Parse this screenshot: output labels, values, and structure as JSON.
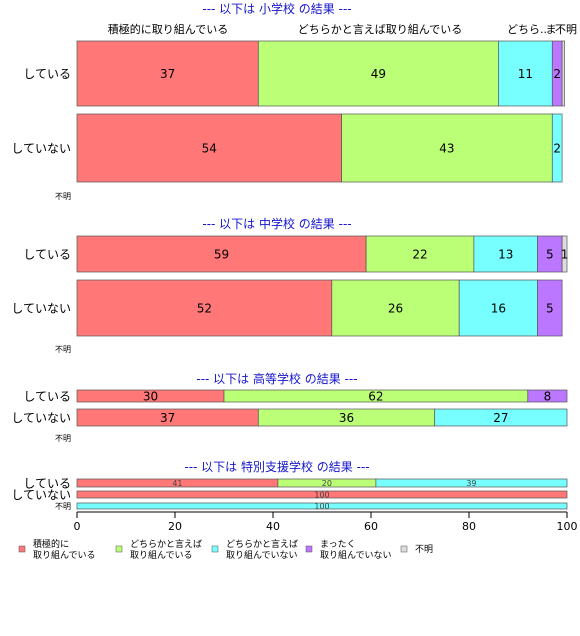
{
  "chart_data": {
    "type": "bar",
    "orientation": "horizontal",
    "stacked": true,
    "xlim": [
      0,
      100
    ],
    "x_ticks": [
      0,
      20,
      40,
      60,
      80,
      100
    ],
    "grid": false,
    "legend_position": "bottom",
    "categories_legend": [
      {
        "label_lines": [
          "積極的に",
          "取り組んでいる"
        ],
        "color": "#FF7777"
      },
      {
        "label_lines": [
          "どちらかと言えば",
          "取り組んでいる"
        ],
        "color": "#BBFF77"
      },
      {
        "label_lines": [
          "どちらかと言えば",
          "取り組んでいない"
        ],
        "color": "#77FFFF"
      },
      {
        "label_lines": [
          "まったく",
          "取り組んでいない"
        ],
        "color": "#BB77FF"
      },
      {
        "label_lines": [
          "不明"
        ],
        "color": "#DDDDDD"
      }
    ],
    "panels": [
      {
        "title": "--- 以下は 小学校 の結果 ---",
        "header_labels": [
          "積極的に取り組んでいる",
          "どちらかと言えば取り組んでいる",
          "どちら..",
          "ま",
          "不明"
        ],
        "rows": [
          {
            "label": "している",
            "values": [
              37,
              49,
              11,
              2,
              0.5
            ],
            "value_labels": [
              "37",
              "49",
              "11",
              "2",
              ""
            ]
          },
          {
            "label": "していない",
            "values": [
              54,
              43,
              2,
              0,
              0
            ],
            "value_labels": [
              "54",
              "43",
              "2",
              "",
              ""
            ]
          },
          {
            "label": "不明",
            "values": [],
            "value_labels": []
          }
        ]
      },
      {
        "title": "--- 以下は 中学校 の結果 ---",
        "header_labels": [],
        "rows": [
          {
            "label": "している",
            "values": [
              59,
              22,
              13,
              5,
              1
            ],
            "value_labels": [
              "59",
              "22",
              "13",
              "5",
              "1"
            ]
          },
          {
            "label": "していない",
            "values": [
              52,
              26,
              16,
              5,
              0
            ],
            "value_labels": [
              "52",
              "26",
              "16",
              "5",
              ""
            ]
          },
          {
            "label": "不明",
            "values": [],
            "value_labels": []
          }
        ]
      },
      {
        "title": "--- 以下は 高等学校 の結果 ---",
        "header_labels": [],
        "rows": [
          {
            "label": "している",
            "values": [
              30,
              62,
              0,
              8,
              0
            ],
            "value_labels": [
              "30",
              "62",
              "",
              "8",
              ""
            ]
          },
          {
            "label": "していない",
            "values": [
              37,
              36,
              27,
              0,
              0
            ],
            "value_labels": [
              "37",
              "36",
              "27",
              "",
              ""
            ]
          },
          {
            "label": "不明",
            "values": [],
            "value_labels": []
          }
        ]
      },
      {
        "title": "--- 以下は 特別支援学校 の結果 ---",
        "header_labels": [],
        "rows": [
          {
            "label": "している",
            "values": [
              41,
              20,
              39,
              0,
              0
            ],
            "value_labels": [
              "41",
              "20",
              "39",
              "",
              ""
            ]
          },
          {
            "label": "していない",
            "values": [
              100,
              0,
              0,
              0,
              0
            ],
            "value_labels": [
              "100",
              "",
              "",
              "",
              ""
            ]
          },
          {
            "label": "不明",
            "values": [
              0,
              0,
              100,
              0,
              0
            ],
            "value_labels": [
              "",
              "",
              "100",
              "",
              ""
            ]
          }
        ]
      }
    ]
  }
}
